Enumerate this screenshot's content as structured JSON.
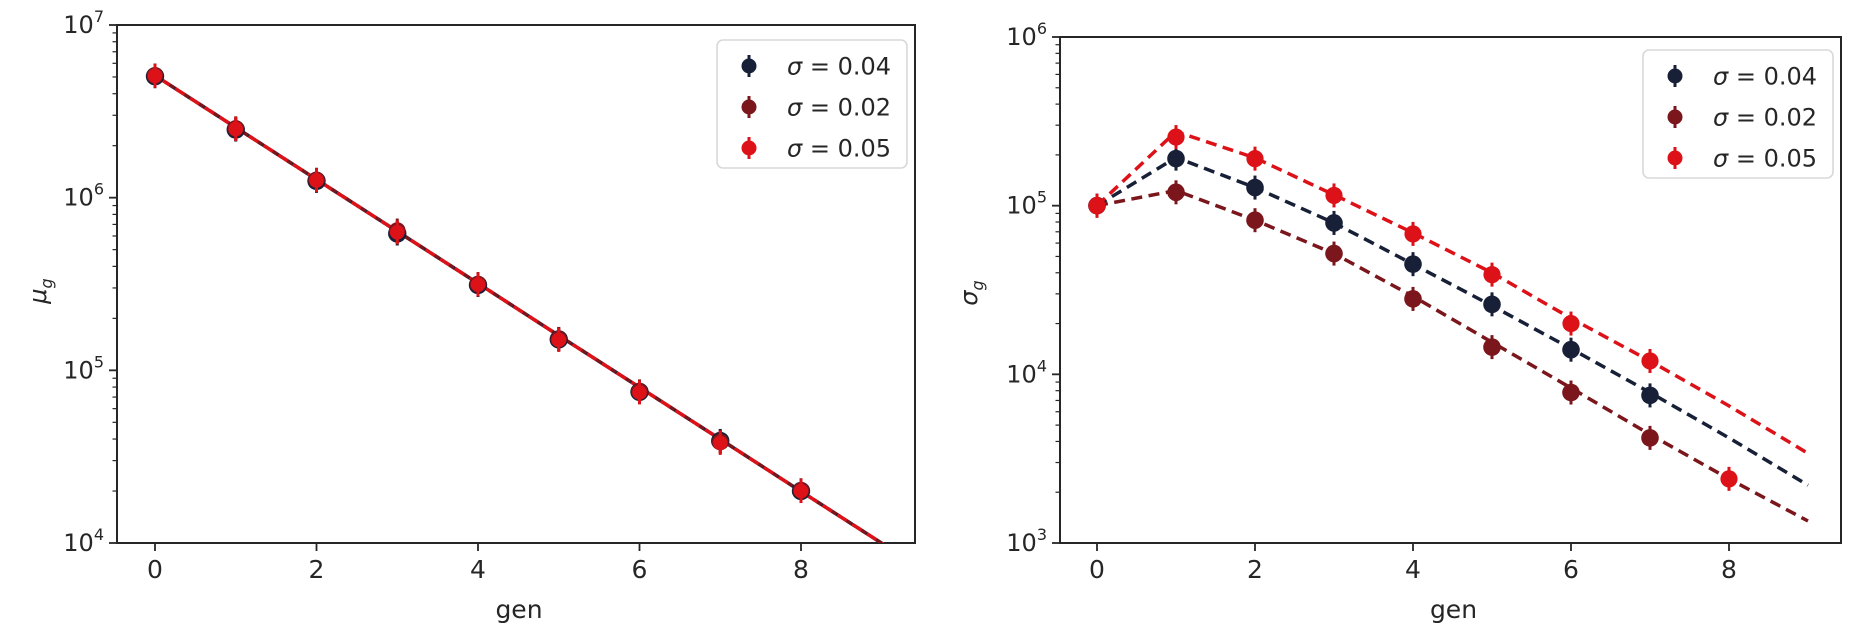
{
  "page": {
    "background": "#ffffff",
    "theme": {
      "frame_color": "#262626",
      "text_color": "#262626",
      "legend_border_color": "#d9d9d9",
      "legend_background": "#ffffff"
    }
  },
  "chart_data": [
    {
      "id": "mu-vs-gen",
      "type": "line",
      "title": "",
      "xlabel": "gen",
      "ylabel": "μ_g",
      "ylabel_base": "μ",
      "ylabel_sub": "g",
      "xscale": "linear",
      "yscale": "log",
      "xticks": [
        0,
        2,
        4,
        6,
        8
      ],
      "ytick_exponents": [
        4,
        5,
        6,
        7
      ],
      "ylim": [
        10000.0,
        10000000.0
      ],
      "xlim": [
        -0.47,
        9.41
      ],
      "grid": false,
      "legend_position": "upper right",
      "legend": [
        {
          "label": "σ = 0.04",
          "color": "#182038"
        },
        {
          "label": "σ = 0.02",
          "color": "#7b161c"
        },
        {
          "label": "σ = 0.05",
          "color": "#dd1219"
        }
      ],
      "series": [
        {
          "name": "σ = 0.04",
          "color": "#182038",
          "marker": "o",
          "linestyle": "--",
          "x": [
            0,
            1,
            2,
            3,
            4,
            5,
            6,
            7,
            8
          ],
          "y": [
            5050000.0,
            2480000.0,
            1250000.0,
            620000.0,
            312000.0,
            151000.0,
            75000.0,
            39000.0,
            20000.0
          ],
          "fit_x": [
            0,
            1,
            2,
            3,
            4,
            5,
            6,
            7,
            8,
            9,
            9.41
          ],
          "fit_y": [
            5100000.0,
            2550000.0,
            1275000.0,
            638000.0,
            319000.0,
            159000.0,
            79700.0,
            39900.0,
            19900.0,
            9970.0,
            7450.0
          ]
        },
        {
          "name": "σ = 0.02",
          "color": "#7b161c",
          "marker": "o",
          "linestyle": "--",
          "x": [
            0,
            1,
            2,
            3,
            4,
            5,
            6,
            7,
            8
          ],
          "y": [
            5100000.0,
            2520000.0,
            1270000.0,
            645000.0,
            316000.0,
            152000.0,
            75500.0,
            38500.0,
            20200.0
          ],
          "fit_x": [
            0,
            1,
            2,
            3,
            4,
            5,
            6,
            7,
            8,
            9,
            9.41
          ],
          "fit_y": [
            5100000.0,
            2550000.0,
            1275000.0,
            638000.0,
            319000.0,
            159000.0,
            79700.0,
            39900.0,
            19900.0,
            9970.0,
            7450.0
          ]
        },
        {
          "name": "σ = 0.05",
          "color": "#dd1219",
          "marker": "o",
          "linestyle": "--",
          "x": [
            0,
            1,
            2,
            3,
            4,
            5,
            6,
            7,
            8
          ],
          "y": [
            5080000.0,
            2500000.0,
            1260000.0,
            630000.0,
            314000.0,
            150000.0,
            74500.0,
            38000.0,
            20000.0
          ],
          "fit_x": [
            0,
            1,
            2,
            3,
            4,
            5,
            6,
            7,
            8,
            9,
            9.41
          ],
          "fit_y": [
            5100000.0,
            2550000.0,
            1275000.0,
            638000.0,
            319000.0,
            159000.0,
            79700.0,
            39900.0,
            19900.0,
            9970.0,
            7450.0
          ]
        }
      ]
    },
    {
      "id": "sigma-vs-gen",
      "type": "line",
      "title": "",
      "xlabel": "gen",
      "ylabel": "σ_g",
      "ylabel_base": "σ",
      "ylabel_sub": "g",
      "xscale": "linear",
      "yscale": "log",
      "xticks": [
        0,
        2,
        4,
        6,
        8
      ],
      "ytick_exponents": [
        3,
        4,
        5,
        6
      ],
      "ylim": [
        1000.0,
        1000000.0
      ],
      "xlim": [
        -0.47,
        9.42
      ],
      "grid": false,
      "legend_position": "upper right",
      "legend": [
        {
          "label": "σ = 0.04",
          "color": "#182038"
        },
        {
          "label": "σ = 0.02",
          "color": "#7b161c"
        },
        {
          "label": "σ = 0.05",
          "color": "#dd1219"
        }
      ],
      "series": [
        {
          "name": "σ = 0.04",
          "color": "#182038",
          "marker": "o",
          "linestyle": "--",
          "x": [
            0,
            1,
            2,
            3,
            4,
            5,
            6,
            7
          ],
          "y": [
            100000.0,
            190000.0,
            128000.0,
            79000.0,
            45000.0,
            26000.0,
            14000.0,
            7500.0
          ],
          "fit_x": [
            0,
            1,
            2,
            3,
            4,
            5,
            6,
            7,
            8,
            9
          ],
          "fit_y": [
            100000.0,
            193000.0,
            128000.0,
            79000.0,
            45000.0,
            25500.0,
            14200.0,
            7800.0,
            4200.0,
            2200.0
          ]
        },
        {
          "name": "σ = 0.02",
          "color": "#7b161c",
          "marker": "o",
          "linestyle": "--",
          "x": [
            0,
            1,
            2,
            3,
            4,
            5,
            6,
            7
          ],
          "y": [
            100000.0,
            120000.0,
            82000.0,
            52000.0,
            28000.0,
            14500.0,
            7800.0,
            4200.0
          ],
          "fit_x": [
            0,
            1,
            2,
            3,
            4,
            5,
            6,
            7,
            8,
            9
          ],
          "fit_y": [
            100000.0,
            123000.0,
            82000.0,
            52000.0,
            29000.0,
            15500.0,
            8300.0,
            4400.0,
            2400.0,
            1350.0
          ]
        },
        {
          "name": "σ = 0.05",
          "color": "#dd1219",
          "marker": "o",
          "linestyle": "--",
          "x": [
            0,
            1,
            2,
            3,
            4,
            5,
            6,
            7,
            8
          ],
          "y": [
            100000.0,
            255000.0,
            190000.0,
            115000.0,
            68000.0,
            39000.0,
            20000.0,
            12000.0,
            2400.0
          ],
          "fit_x": [
            0,
            1,
            2,
            3,
            4,
            5,
            6,
            7,
            8,
            9
          ],
          "fit_y": [
            100000.0,
            275000.0,
            192000.0,
            116000.0,
            69000.0,
            40000.0,
            21500.0,
            12000.0,
            6500.0,
            3400.0
          ]
        }
      ]
    }
  ]
}
